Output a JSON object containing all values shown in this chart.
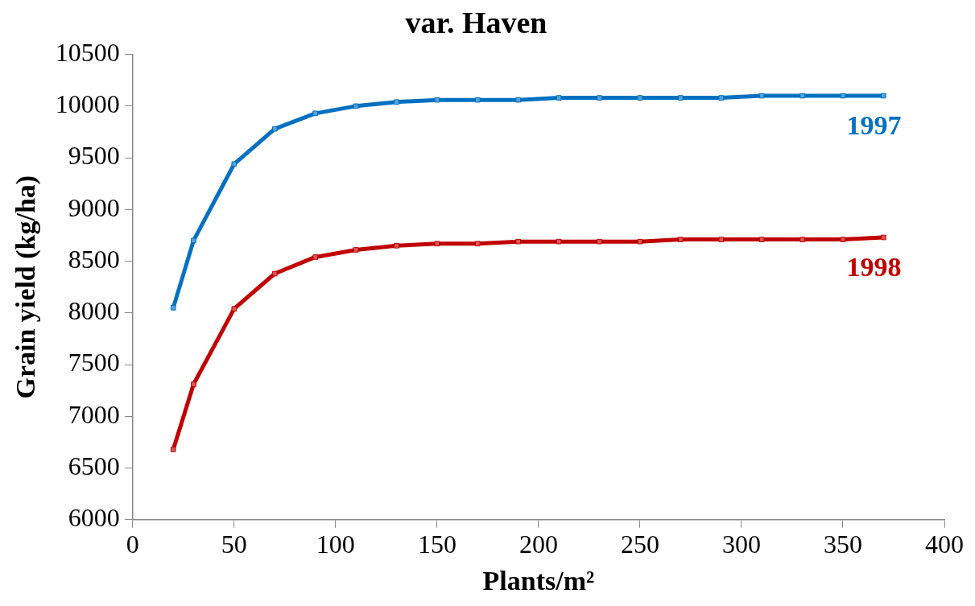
{
  "chart_data": {
    "type": "line",
    "title": "var. Haven",
    "xlabel": "Plants/m²",
    "ylabel": "Grain yield (kg/ha)",
    "x": [
      20,
      30,
      50,
      70,
      90,
      110,
      130,
      150,
      170,
      190,
      210,
      230,
      250,
      270,
      290,
      310,
      330,
      350,
      370
    ],
    "series": [
      {
        "name": "1997",
        "color": "#0070c0",
        "values": [
          8050,
          8700,
          9440,
          9780,
          9930,
          10000,
          10040,
          10060,
          10060,
          10060,
          10080,
          10080,
          10080,
          10080,
          10080,
          10100,
          10100,
          10100,
          10100
        ]
      },
      {
        "name": "1998",
        "color": "#c00000",
        "values": [
          6680,
          7310,
          8040,
          8380,
          8540,
          8610,
          8650,
          8670,
          8670,
          8690,
          8690,
          8690,
          8690,
          8710,
          8710,
          8710,
          8710,
          8710,
          8730
        ]
      }
    ],
    "xlim": [
      0,
      400
    ],
    "xticks": [
      0,
      50,
      100,
      150,
      200,
      250,
      300,
      350,
      400
    ],
    "ylim": [
      6000,
      10500
    ],
    "yticks": [
      6000,
      6500,
      7000,
      7500,
      8000,
      8500,
      9000,
      9500,
      10000,
      10500
    ],
    "grid": false,
    "legend": false,
    "marker": "square",
    "line_style": "solid"
  }
}
